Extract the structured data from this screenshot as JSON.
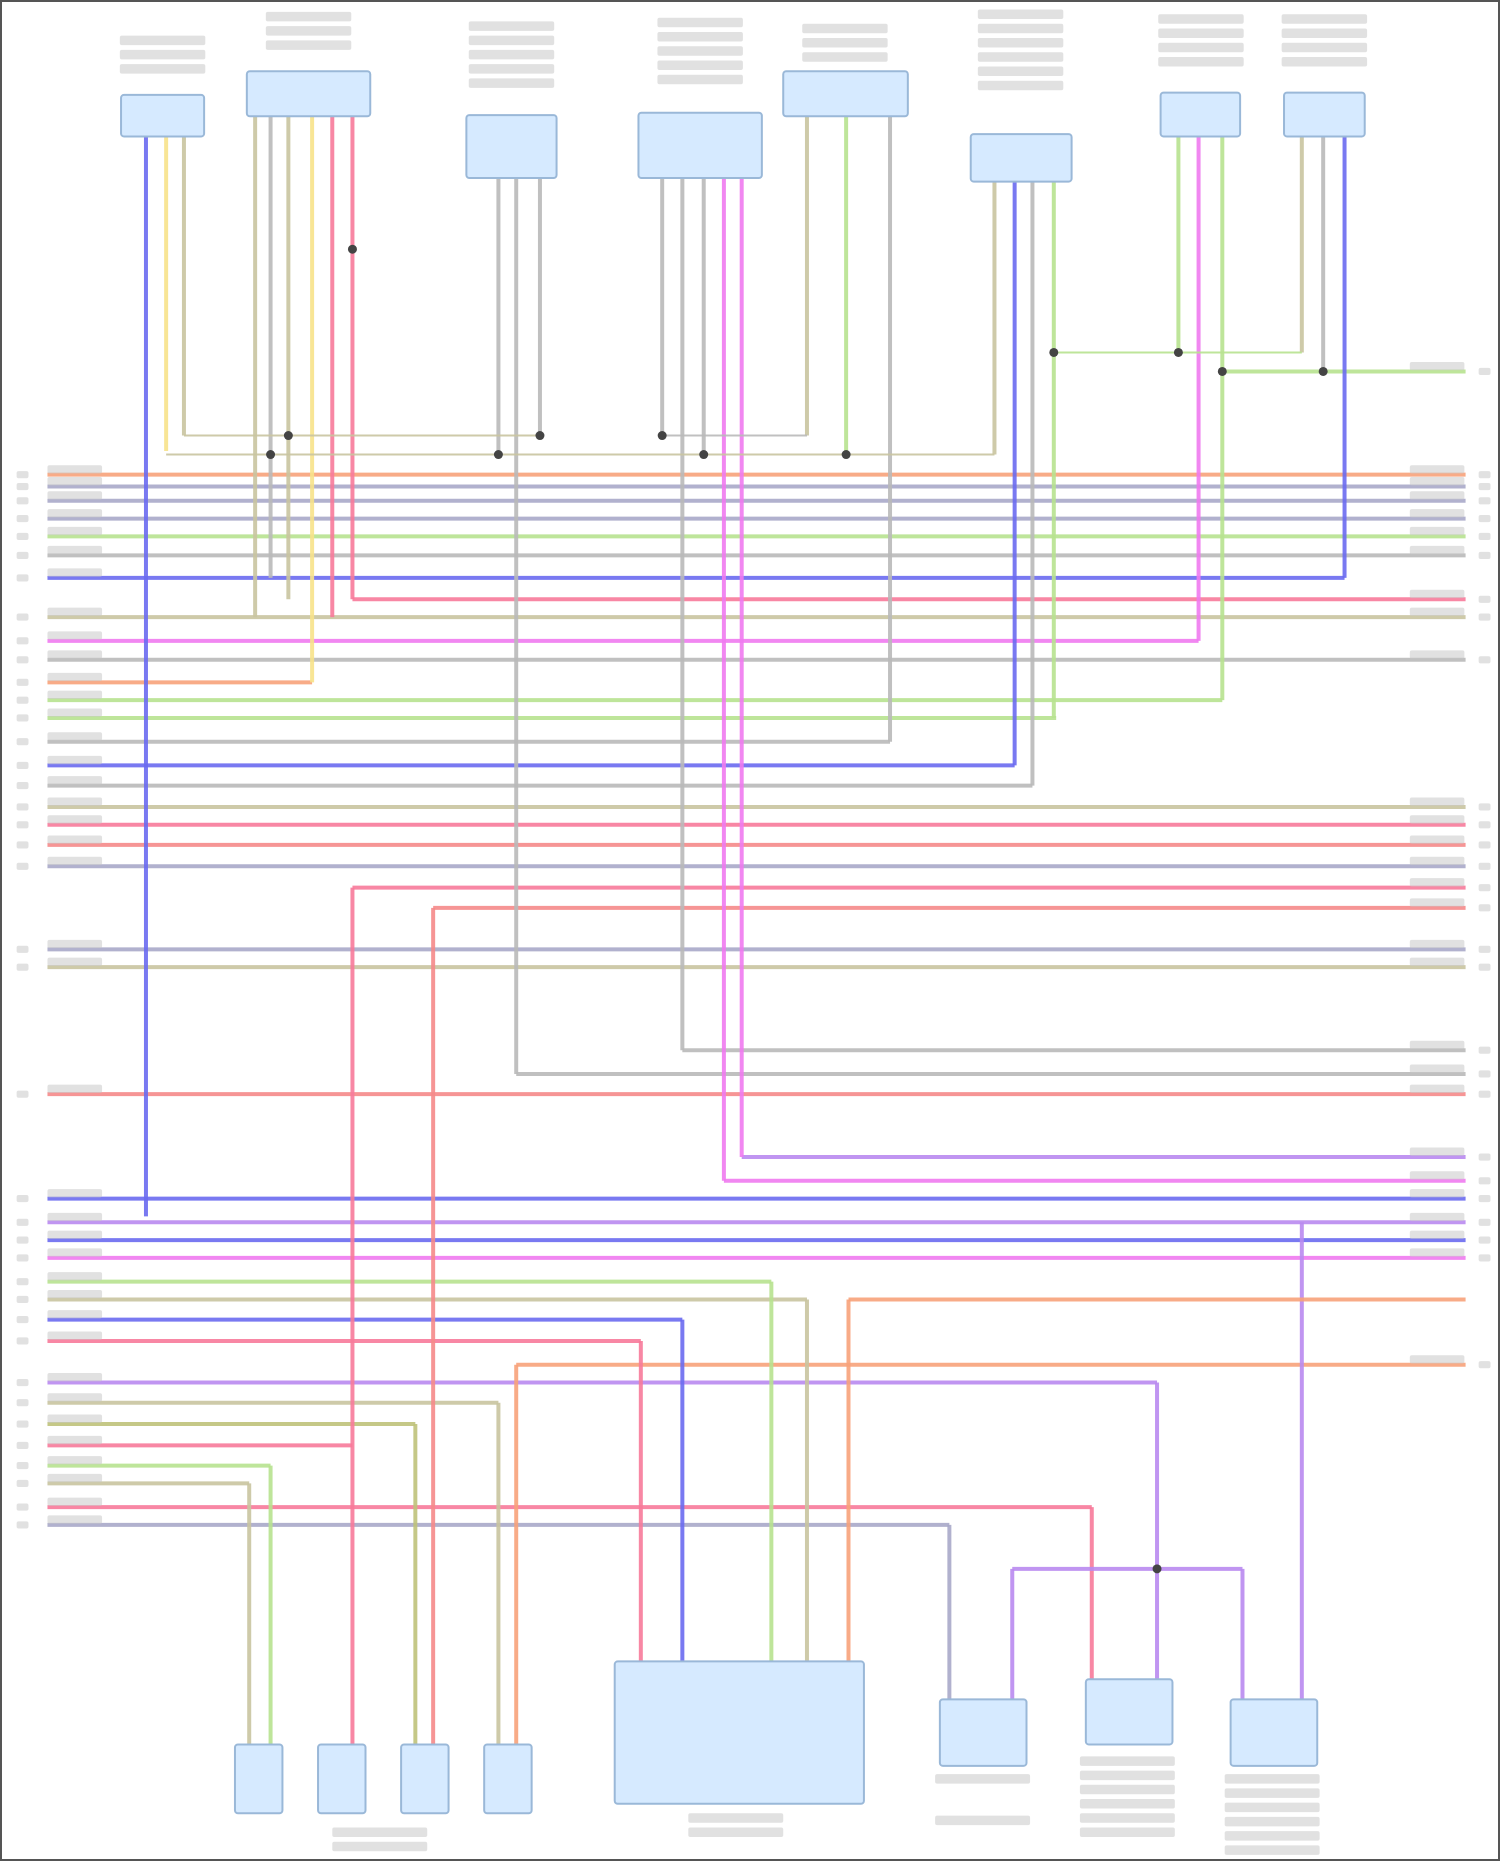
{
  "diagram": {
    "type": "wiring-diagram",
    "wire_colors": {
      "orange": "#f7a27a",
      "gray": "#b9b9b9",
      "slate": "#a9a9c9",
      "green": "#b7e28f",
      "blue": "#6a6af0",
      "pink": "#f77a9a",
      "red": "#f58a8a",
      "magenta": "#f07af0",
      "tan": "#c9c4a0",
      "yellow": "#f7e28a",
      "purple": "#b98af0",
      "olive": "#bfc27a"
    },
    "component_fill": "#d6eaff",
    "component_stroke": "#9ab8d8",
    "labels_legible": false
  }
}
